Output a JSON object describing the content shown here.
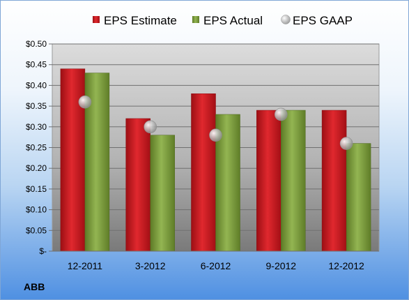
{
  "ticker": "ABB",
  "colors": {
    "estimate": "#c8171d",
    "actual": "#7a9a38",
    "gaap": "#b5b5b5"
  },
  "chart_data": {
    "type": "bar",
    "categories": [
      "12-2011",
      "3-2012",
      "6-2012",
      "9-2012",
      "12-2012"
    ],
    "series": [
      {
        "name": "EPS Estimate",
        "values": [
          0.44,
          0.32,
          0.38,
          0.34,
          0.34
        ]
      },
      {
        "name": "EPS Actual",
        "values": [
          0.43,
          0.28,
          0.33,
          0.34,
          0.26
        ]
      },
      {
        "name": "EPS GAAP",
        "values": [
          0.36,
          0.3,
          0.28,
          0.33,
          0.26
        ],
        "marker": "circle"
      }
    ],
    "ylim": [
      0,
      0.5
    ],
    "y_ticks": [
      0,
      0.05,
      0.1,
      0.15,
      0.2,
      0.25,
      0.3,
      0.35,
      0.4,
      0.45,
      0.5
    ],
    "y_tick_labels": [
      "$-",
      "$0.05",
      "$0.10",
      "$0.15",
      "$0.20",
      "$0.25",
      "$0.30",
      "$0.35",
      "$0.40",
      "$0.45",
      "$0.50"
    ],
    "grid": true,
    "legend": "top"
  }
}
